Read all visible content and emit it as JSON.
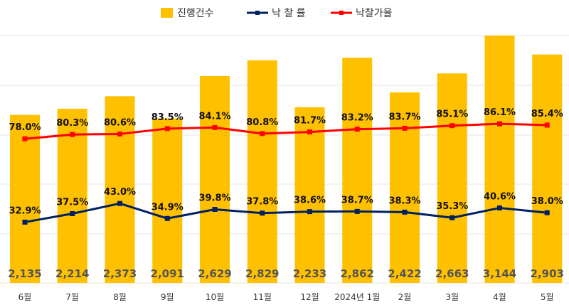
{
  "colors": {
    "bars": "#FFC000",
    "sale_rate": "#002060",
    "price_rate": "#FF0000",
    "grid": "#E4E4E4",
    "bar_label": "#555555"
  },
  "chart_data": {
    "type": "bar",
    "categories": [
      "6월",
      "7월",
      "8월",
      "9월",
      "10월",
      "11월",
      "12월",
      "2024년 1월",
      "2월",
      "3월",
      "4월",
      "5월"
    ],
    "legend_position": "top-center",
    "grid": true,
    "series": [
      {
        "key": "cases",
        "name": "진행건수",
        "type": "bar",
        "values": [
          2135,
          2214,
          2373,
          2091,
          2629,
          2829,
          2233,
          2862,
          2422,
          2663,
          3144,
          2903
        ],
        "labels": [
          "2,135",
          "2,214",
          "2,373",
          "2,091",
          "2,629",
          "2,829",
          "2,233",
          "2,862",
          "2,422",
          "2,663",
          "3,144",
          "2,903"
        ]
      },
      {
        "key": "sale_rate",
        "name": "낙 찰 률",
        "type": "line",
        "values": [
          32.9,
          37.5,
          43.0,
          34.9,
          39.8,
          37.8,
          38.6,
          38.7,
          38.3,
          35.3,
          40.6,
          38.0
        ],
        "labels": [
          "32.9%",
          "37.5%",
          "43.0%",
          "34.9%",
          "39.8%",
          "37.8%",
          "38.6%",
          "38.7%",
          "38.3%",
          "35.3%",
          "40.6%",
          "38.0%"
        ]
      },
      {
        "key": "price_rate",
        "name": "낙찰가율",
        "type": "line",
        "values": [
          78.0,
          80.3,
          80.6,
          83.5,
          84.1,
          80.8,
          81.7,
          83.2,
          83.7,
          85.1,
          86.1,
          85.4
        ],
        "labels": [
          "78.0%",
          "80.3%",
          "80.6%",
          "83.5%",
          "84.1%",
          "80.8%",
          "81.7%",
          "83.2%",
          "83.7%",
          "85.1%",
          "86.1%",
          "85.4%"
        ]
      }
    ],
    "bar_axis": {
      "min": 0,
      "max": 3144
    },
    "line_axis": {
      "min": 0,
      "max": 130
    }
  }
}
